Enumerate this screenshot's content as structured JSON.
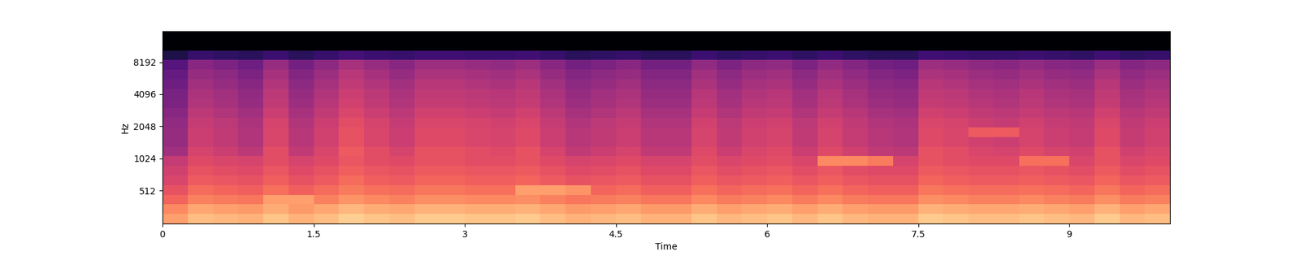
{
  "chart_data": {
    "type": "heatmap",
    "x_label": "Time",
    "y_label": "Hz",
    "log": "y",
    "grid": false,
    "xlim": [
      0,
      10
    ],
    "ylim": [
      0,
      16000
    ],
    "xticks": [
      0,
      1.5,
      3,
      4.5,
      6,
      7.5,
      9
    ],
    "yticks": [
      512,
      1024,
      2048,
      4096,
      8192
    ],
    "value_range": [
      -80,
      0
    ],
    "x": [
      0,
      0.25,
      0.5,
      0.75,
      1,
      1.25,
      1.5,
      1.75,
      2,
      2.25,
      2.5,
      2.75,
      3,
      3.25,
      3.5,
      3.75,
      4,
      4.25,
      4.5,
      4.75,
      5,
      5.25,
      5.5,
      5.75,
      6,
      6.25,
      6.5,
      6.75,
      7,
      7.25,
      7.5,
      7.75,
      8,
      8.25,
      8.5,
      8.75,
      9,
      9.25,
      9.5,
      9.75,
      10
    ],
    "y": [
      0,
      150,
      300,
      450,
      600,
      750,
      900,
      1072,
      1320,
      1625,
      2000,
      2462,
      3031,
      3732,
      4595,
      5657,
      6964,
      8574,
      10556,
      12996,
      16000
    ],
    "cells": [
      [
        -16,
        -11,
        -12,
        -13,
        -10,
        -13,
        -11,
        -8,
        -10,
        -11,
        -9,
        -9,
        -10,
        -10,
        -9,
        -11,
        -13,
        -12,
        -11,
        -13,
        -13,
        -10,
        -12,
        -11,
        -10,
        -12,
        -10,
        -12,
        -13,
        -13,
        -9,
        -10,
        -11,
        -11,
        -10,
        -11,
        -12,
        -9,
        -12,
        -11
      ],
      [
        -20,
        -15,
        -16,
        -17,
        -14,
        -17,
        -15,
        -12,
        -14,
        -15,
        -13,
        -13,
        -14,
        -14,
        -13,
        -15,
        -17,
        -16,
        -15,
        -17,
        -17,
        -14,
        -16,
        -15,
        -14,
        -16,
        -14,
        -16,
        -17,
        -17,
        -13,
        -14,
        -15,
        -15,
        -14,
        -15,
        -16,
        -13,
        -16,
        -15
      ],
      [
        -26,
        -21,
        -22,
        -23,
        -16,
        -16,
        -21,
        -18,
        -20,
        -21,
        -19,
        -19,
        -20,
        -20,
        -19,
        -21,
        -23,
        -22,
        -21,
        -23,
        -23,
        -20,
        -22,
        -21,
        -20,
        -22,
        -20,
        -22,
        -23,
        -23,
        -19,
        -20,
        -21,
        -21,
        -20,
        -21,
        -22,
        -19,
        -22,
        -21
      ],
      [
        -30,
        -25,
        -26,
        -27,
        -24,
        -27,
        -25,
        -22,
        -24,
        -25,
        -23,
        -23,
        -24,
        -24,
        -16,
        -16,
        -18,
        -26,
        -25,
        -27,
        -27,
        -24,
        -26,
        -25,
        -24,
        -26,
        -24,
        -26,
        -27,
        -27,
        -23,
        -24,
        -25,
        -25,
        -24,
        -25,
        -26,
        -23,
        -26,
        -25
      ],
      [
        -33,
        -28,
        -29,
        -30,
        -27,
        -30,
        -28,
        -25,
        -27,
        -28,
        -26,
        -26,
        -27,
        -27,
        -26,
        -28,
        -30,
        -29,
        -28,
        -30,
        -30,
        -27,
        -29,
        -28,
        -27,
        -29,
        -27,
        -29,
        -30,
        -30,
        -26,
        -27,
        -28,
        -28,
        -27,
        -28,
        -29,
        -26,
        -29,
        -28
      ],
      [
        -35,
        -30,
        -31,
        -32,
        -29,
        -32,
        -30,
        -27,
        -29,
        -30,
        -28,
        -28,
        -29,
        -29,
        -28,
        -30,
        -32,
        -31,
        -30,
        -32,
        -32,
        -29,
        -31,
        -30,
        -29,
        -31,
        -29,
        -31,
        -32,
        -32,
        -28,
        -29,
        -30,
        -30,
        -29,
        -30,
        -31,
        -28,
        -31,
        -30
      ],
      [
        -37,
        -32,
        -33,
        -34,
        -31,
        -34,
        -32,
        -29,
        -31,
        -32,
        -30,
        -30,
        -31,
        -31,
        -30,
        -32,
        -34,
        -33,
        -32,
        -34,
        -34,
        -31,
        -33,
        -32,
        -31,
        -33,
        -20,
        -20,
        -22,
        -34,
        -30,
        -31,
        -32,
        -32,
        -24,
        -24,
        -33,
        -30,
        -33,
        -32
      ],
      [
        -44,
        -34,
        -36,
        -39,
        -31,
        -38,
        -33,
        -28,
        -31,
        -34,
        -30,
        -30,
        -31,
        -32,
        -30,
        -34,
        -38,
        -36,
        -34,
        -38,
        -38,
        -32,
        -36,
        -33,
        -32,
        -36,
        -32,
        -35,
        -38,
        -39,
        -30,
        -31,
        -33,
        -34,
        -32,
        -34,
        -35,
        -30,
        -35,
        -33
      ],
      [
        -46,
        -36,
        -38,
        -41,
        -33,
        -40,
        -35,
        -30,
        -33,
        -36,
        -32,
        -32,
        -33,
        -34,
        -32,
        -36,
        -40,
        -38,
        -36,
        -40,
        -40,
        -34,
        -38,
        -35,
        -34,
        -38,
        -34,
        -37,
        -40,
        -41,
        -32,
        -33,
        -35,
        -36,
        -34,
        -36,
        -37,
        -32,
        -37,
        -35
      ],
      [
        -46,
        -36,
        -38,
        -41,
        -33,
        -40,
        -35,
        -30,
        -33,
        -36,
        -32,
        -32,
        -33,
        -34,
        -32,
        -36,
        -40,
        -38,
        -36,
        -40,
        -40,
        -34,
        -38,
        -35,
        -34,
        -38,
        -34,
        -37,
        -40,
        -41,
        -32,
        -33,
        -28,
        -28,
        -34,
        -36,
        -37,
        -32,
        -37,
        -35
      ],
      [
        -47,
        -37,
        -39,
        -42,
        -34,
        -41,
        -36,
        -31,
        -34,
        -37,
        -33,
        -33,
        -34,
        -35,
        -33,
        -37,
        -41,
        -39,
        -37,
        -41,
        -41,
        -35,
        -39,
        -36,
        -35,
        -39,
        -35,
        -38,
        -41,
        -42,
        -33,
        -34,
        -36,
        -37,
        -35,
        -37,
        -38,
        -33,
        -38,
        -36
      ],
      [
        -49,
        -39,
        -41,
        -44,
        -36,
        -43,
        -38,
        -33,
        -36,
        -39,
        -35,
        -35,
        -36,
        -37,
        -35,
        -39,
        -43,
        -41,
        -39,
        -43,
        -43,
        -37,
        -41,
        -38,
        -37,
        -41,
        -37,
        -40,
        -43,
        -44,
        -35,
        -36,
        -38,
        -39,
        -37,
        -39,
        -40,
        -35,
        -40,
        -38
      ],
      [
        -51,
        -41,
        -43,
        -46,
        -38,
        -45,
        -40,
        -35,
        -38,
        -41,
        -37,
        -37,
        -38,
        -39,
        -37,
        -41,
        -45,
        -43,
        -41,
        -45,
        -45,
        -39,
        -43,
        -40,
        -39,
        -43,
        -39,
        -42,
        -45,
        -46,
        -37,
        -38,
        -40,
        -41,
        -39,
        -41,
        -42,
        -37,
        -42,
        -40
      ],
      [
        -52,
        -42,
        -44,
        -47,
        -39,
        -46,
        -41,
        -36,
        -39,
        -42,
        -38,
        -38,
        -39,
        -40,
        -38,
        -42,
        -46,
        -44,
        -42,
        -46,
        -46,
        -40,
        -44,
        -41,
        -40,
        -44,
        -40,
        -43,
        -46,
        -47,
        -38,
        -39,
        -41,
        -42,
        -40,
        -42,
        -43,
        -38,
        -43,
        -41
      ],
      [
        -54,
        -44,
        -46,
        -49,
        -41,
        -48,
        -43,
        -38,
        -41,
        -44,
        -40,
        -40,
        -41,
        -42,
        -40,
        -44,
        -48,
        -46,
        -44,
        -48,
        -48,
        -42,
        -46,
        -43,
        -42,
        -46,
        -42,
        -45,
        -48,
        -49,
        -40,
        -41,
        -43,
        -44,
        -42,
        -44,
        -45,
        -40,
        -45,
        -43
      ],
      [
        -56,
        -46,
        -48,
        -51,
        -43,
        -50,
        -45,
        -40,
        -43,
        -46,
        -42,
        -42,
        -43,
        -44,
        -42,
        -46,
        -50,
        -48,
        -46,
        -50,
        -50,
        -44,
        -48,
        -45,
        -44,
        -48,
        -44,
        -47,
        -50,
        -51,
        -42,
        -43,
        -45,
        -46,
        -44,
        -46,
        -47,
        -42,
        -47,
        -45
      ],
      [
        -59,
        -49,
        -51,
        -54,
        -46,
        -53,
        -48,
        -43,
        -46,
        -49,
        -45,
        -45,
        -46,
        -47,
        -45,
        -49,
        -53,
        -51,
        -49,
        -53,
        -53,
        -47,
        -51,
        -48,
        -47,
        -51,
        -47,
        -50,
        -53,
        -54,
        -45,
        -46,
        -48,
        -49,
        -47,
        -49,
        -50,
        -45,
        -50,
        -48
      ],
      [
        -70,
        -65,
        -66,
        -67,
        -64,
        -67,
        -65,
        -62,
        -64,
        -65,
        -63,
        -63,
        -64,
        -64,
        -63,
        -65,
        -67,
        -66,
        -65,
        -67,
        -67,
        -64,
        -66,
        -65,
        -64,
        -66,
        -64,
        -66,
        -67,
        -67,
        -63,
        -64,
        -65,
        -65,
        -64,
        -65,
        -66,
        -63,
        -66,
        -65
      ],
      [
        -80,
        -80,
        -80,
        -80,
        -80,
        -80,
        -80,
        -80,
        -80,
        -80,
        -80,
        -80,
        -80,
        -80,
        -80,
        -80,
        -80,
        -80,
        -80,
        -80,
        -80,
        -80,
        -80,
        -80,
        -80,
        -80,
        -80,
        -80,
        -80,
        -80,
        -80,
        -80,
        -80,
        -80,
        -80,
        -80,
        -80,
        -80,
        -80,
        -80
      ],
      [
        -80,
        -80,
        -80,
        -80,
        -80,
        -80,
        -80,
        -80,
        -80,
        -80,
        -80,
        -80,
        -80,
        -80,
        -80,
        -80,
        -80,
        -80,
        -80,
        -80,
        -80,
        -80,
        -80,
        -80,
        -80,
        -80,
        -80,
        -80,
        -80,
        -80,
        -80,
        -80,
        -80,
        -80,
        -80,
        -80,
        -80,
        -80,
        -80,
        -80
      ]
    ]
  }
}
